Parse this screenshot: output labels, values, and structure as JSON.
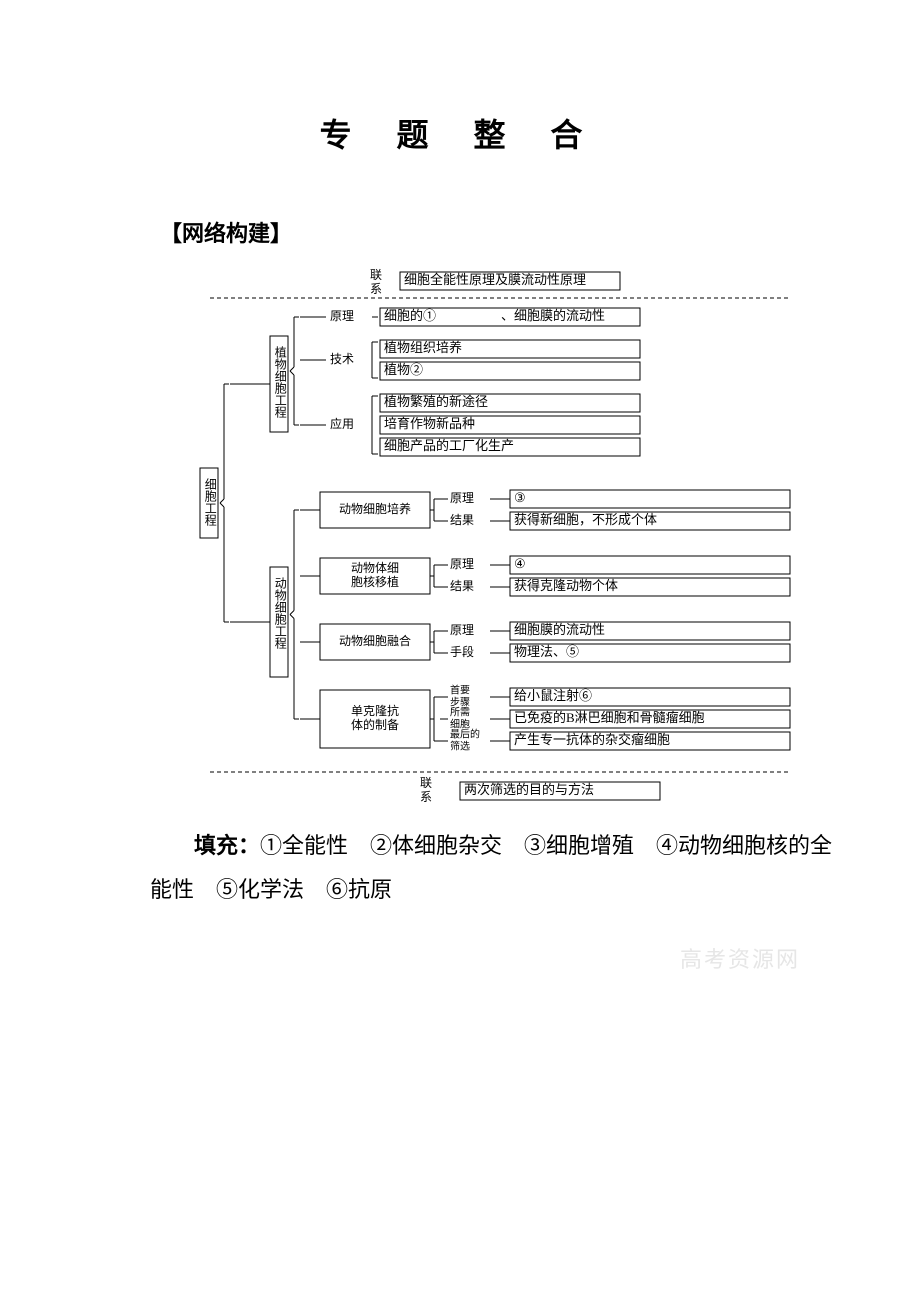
{
  "title": "专 题 整 合",
  "section_head": "【网络构建】",
  "diagram": {
    "font_family": "SimSun, 宋体, serif",
    "text_color": "#000000",
    "border_color": "#000000",
    "dash_color": "#000000",
    "bg": "#ffffff",
    "fontsize_normal": 13,
    "fontsize_small": 12,
    "root": "细胞工程",
    "top_link_label": "联系",
    "top_link_box": "细胞全能性原理及膜流动性原理",
    "bottom_link_label": "联系",
    "bottom_link_box": "两次筛选的目的与方法",
    "plant": {
      "label": "植物细胞工程",
      "rows": [
        {
          "k": "原理",
          "boxes": [
            "细胞的①　　　　　、细胞膜的流动性"
          ]
        },
        {
          "k": "技术",
          "boxes": [
            "植物组织培养",
            "植物②　　　　　　　"
          ]
        },
        {
          "k": "应用",
          "boxes": [
            "植物繁殖的新途径",
            "培育作物新品种",
            "细胞产品的工厂化生产"
          ]
        }
      ]
    },
    "animal": {
      "label": "动物细胞工程",
      "items": [
        {
          "name": "动物细胞培养",
          "rows": [
            {
              "k": "原理",
              "box": "③"
            },
            {
              "k": "结果",
              "box": "获得新细胞，不形成个体"
            }
          ]
        },
        {
          "name": "动物体细胞核移植",
          "rows": [
            {
              "k": "原理",
              "box": "④"
            },
            {
              "k": "结果",
              "box": "获得克隆动物个体"
            }
          ]
        },
        {
          "name": "动物细胞融合",
          "rows": [
            {
              "k": "原理",
              "box": "细胞膜的流动性"
            },
            {
              "k": "手段",
              "box": "物理法、⑤"
            }
          ]
        },
        {
          "name": "单克隆抗体的制备",
          "rows": [
            {
              "k": "首要步骤",
              "box": "给小鼠注射⑥"
            },
            {
              "k": "所需细胞",
              "box": "已免疫的B淋巴细胞和骨髓瘤细胞"
            },
            {
              "k": "最后的筛选",
              "box": "产生专一抗体的杂交瘤细胞"
            }
          ]
        }
      ]
    }
  },
  "fill": {
    "label": "填充：",
    "items": [
      "①全能性",
      "②体细胞杂交",
      "③细胞增殖",
      "④动物细胞核的全能性",
      "⑤化学法",
      "⑥抗原"
    ]
  },
  "watermark": "高考资源网"
}
